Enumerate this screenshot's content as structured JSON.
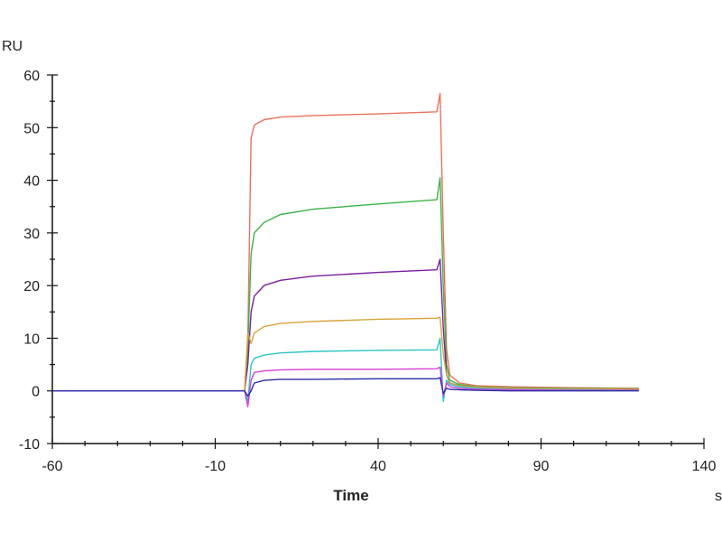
{
  "chart_data": {
    "type": "line",
    "title": "",
    "xlabel": "Time",
    "xunit": "s",
    "ylabel": "RU",
    "xlim": [
      -60,
      140
    ],
    "ylim": [
      -10,
      60
    ],
    "xticks": [
      "-60",
      "-10",
      "40",
      "90",
      "140"
    ],
    "yticks": [
      "-10",
      "0",
      "10",
      "20",
      "30",
      "40",
      "50",
      "60"
    ],
    "grid": false,
    "legend": "none",
    "x": [
      -60,
      -2,
      -1,
      0,
      1,
      2,
      5,
      10,
      20,
      40,
      58,
      59,
      60,
      61,
      62,
      65,
      70,
      80,
      100,
      120
    ],
    "series": [
      {
        "name": "red",
        "color": "#e8735f",
        "values": [
          0,
          0,
          0,
          10,
          48,
          50.5,
          51.5,
          52,
          52.3,
          52.6,
          53,
          56.5,
          30,
          8,
          3,
          1.5,
          1,
          0.8,
          0.6,
          0.5
        ]
      },
      {
        "name": "green",
        "color": "#3cb34a",
        "values": [
          0,
          0,
          0,
          8,
          26,
          30,
          32,
          33.5,
          34.5,
          35.5,
          36.3,
          40.5,
          20,
          5,
          2,
          1.2,
          0.8,
          0.6,
          0.5,
          0.4
        ]
      },
      {
        "name": "purple",
        "color": "#7a1fa0",
        "values": [
          0,
          0,
          0,
          5,
          15,
          18,
          20,
          21,
          21.8,
          22.5,
          23,
          25,
          12,
          3,
          1.5,
          1,
          0.7,
          0.5,
          0.4,
          0.3
        ]
      },
      {
        "name": "orange",
        "color": "#d9a23a",
        "values": [
          0,
          0,
          0,
          11,
          9,
          11,
          12.2,
          12.8,
          13.2,
          13.6,
          13.8,
          14,
          7,
          3,
          1.5,
          1,
          0.7,
          0.5,
          0.4,
          0.3
        ]
      },
      {
        "name": "cyan",
        "color": "#2ec4c4",
        "values": [
          0,
          0,
          0,
          -2,
          5,
          6.2,
          6.8,
          7.2,
          7.5,
          7.7,
          7.8,
          10,
          -2,
          2,
          1.2,
          0.8,
          0.5,
          0.3,
          0.2,
          0.1
        ]
      },
      {
        "name": "magenta",
        "color": "#d63fd6",
        "values": [
          0,
          0,
          0,
          -3,
          2,
          3.5,
          3.8,
          4,
          4.1,
          4.1,
          4.2,
          4.5,
          -1,
          1.5,
          0.8,
          0.5,
          0.3,
          0.2,
          0.1,
          0.1
        ]
      },
      {
        "name": "blue",
        "color": "#2b2fa8",
        "values": [
          0,
          0,
          0,
          -1,
          0,
          1.5,
          2,
          2.2,
          2.2,
          2.3,
          2.3,
          2.5,
          -0.5,
          0.5,
          0.3,
          0.2,
          0.1,
          0,
          0,
          0
        ]
      }
    ]
  }
}
